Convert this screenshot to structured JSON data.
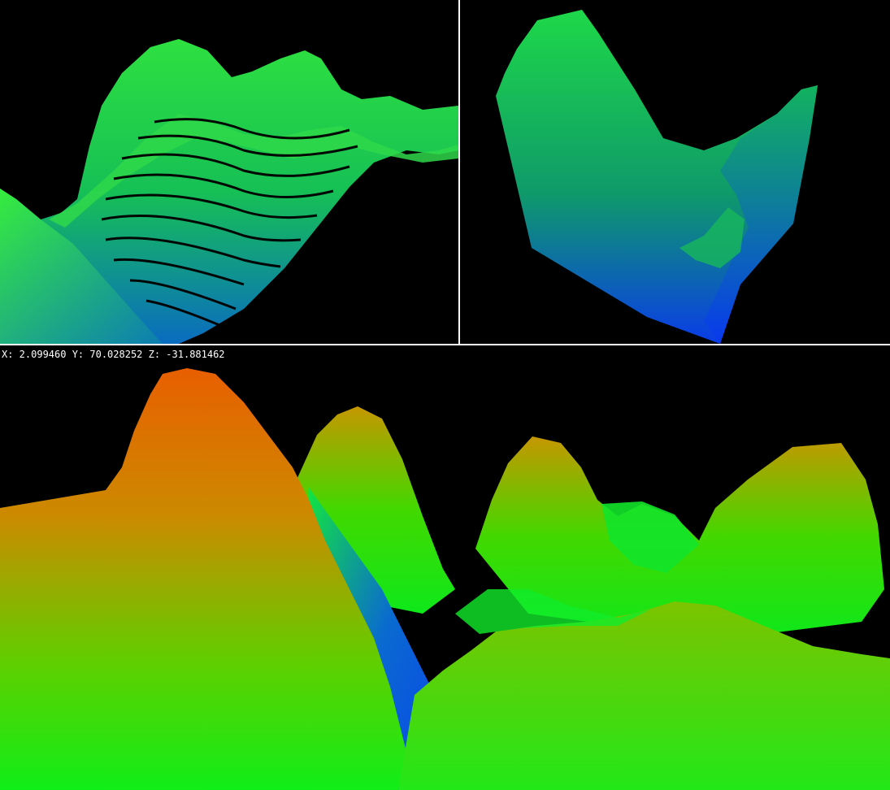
{
  "viewports": {
    "top_left": {
      "view": "wireframe-surface"
    },
    "top_right": {
      "view": "heightmap-block"
    },
    "bottom": {
      "view": "perspective-terrain"
    }
  },
  "camera_readout": {
    "text": "X: 2.099460 Y: 70.028252 Z: -31.881462"
  },
  "colors": {
    "background": "#000000",
    "divider": "#ffffff",
    "low": "#0033ff",
    "mid": "#00ee33",
    "high": "#ff7700",
    "text": "#ffffff"
  }
}
